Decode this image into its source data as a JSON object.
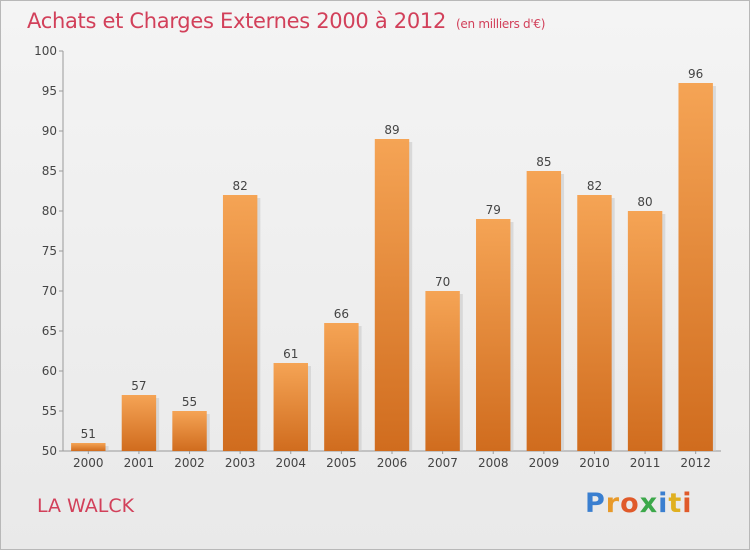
{
  "title": "Achats et Charges Externes 2000 à 2012",
  "unit": "(en milliers d'€)",
  "place": "LA WALCK",
  "logo": {
    "text": "Proxiti",
    "letter_colors": [
      "#3a7fd0",
      "#e89a2a",
      "#e05a2a",
      "#3ca84a",
      "#3a7fd0",
      "#e0b020",
      "#e05a2a"
    ]
  },
  "chart_data": {
    "type": "bar",
    "categories": [
      "2000",
      "2001",
      "2002",
      "2003",
      "2004",
      "2005",
      "2006",
      "2007",
      "2008",
      "2009",
      "2010",
      "2011",
      "2012"
    ],
    "values": [
      51,
      57,
      55,
      82,
      61,
      66,
      89,
      70,
      79,
      85,
      82,
      80,
      96
    ],
    "ylim": [
      50,
      100
    ],
    "yticks": [
      50,
      55,
      60,
      65,
      70,
      75,
      80,
      85,
      90,
      95,
      100
    ],
    "grid": false,
    "bar_color": "#f09a4a",
    "bar_color_dark": "#d26e20"
  }
}
